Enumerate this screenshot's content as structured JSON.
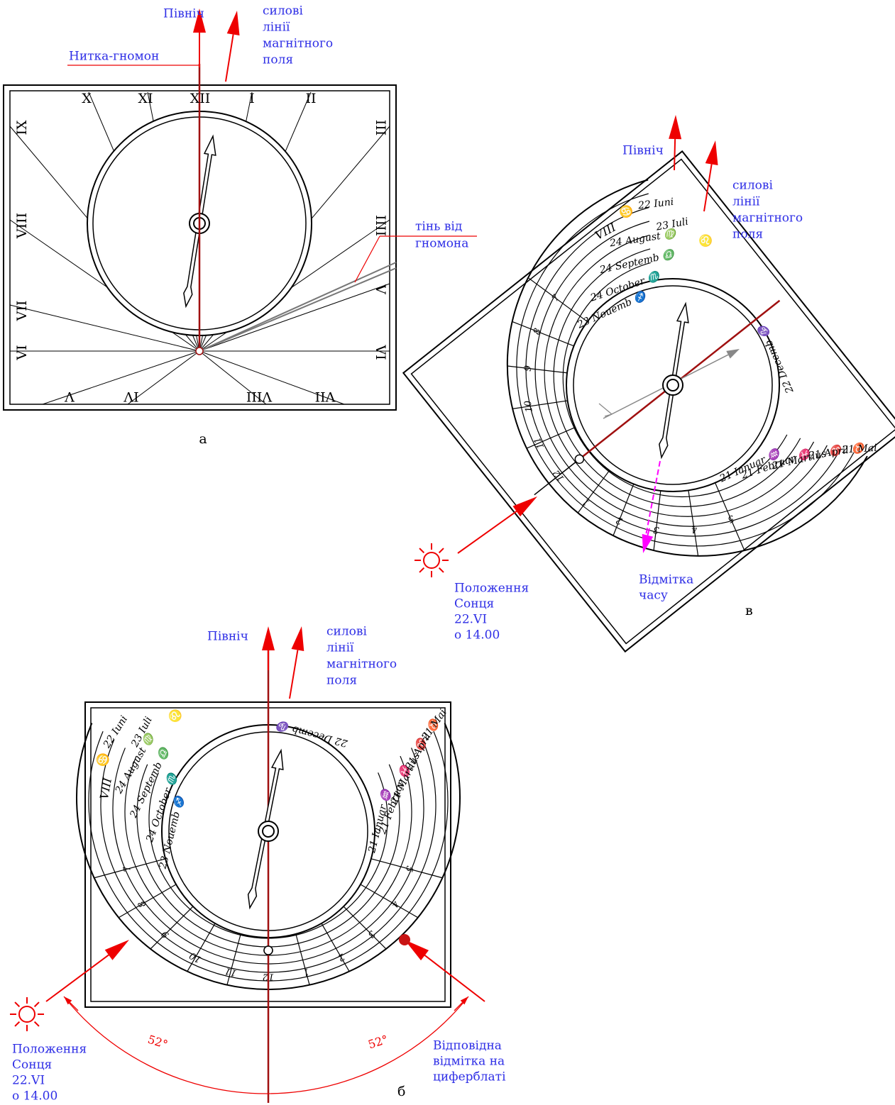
{
  "panel_a": {
    "north": "Північ",
    "field_lines": [
      "силові",
      "лінії",
      "магнітного",
      "поля"
    ],
    "gnomon_thread": "Нитка-гномон",
    "gnomon_shadow": [
      "тінь від",
      "гномона"
    ],
    "hours": [
      "X",
      "XI",
      "XII",
      "I",
      "II",
      "IX",
      "VIII",
      "VII",
      "VI",
      "III",
      "IIII",
      "V",
      "VI",
      "V",
      "IV",
      "VIII",
      "VII"
    ],
    "caption": "а"
  },
  "panel_v": {
    "north": "Північ",
    "field_lines": [
      "силові",
      "лінії",
      "магнітного",
      "поля"
    ],
    "dial": {
      "hours": [
        "7",
        "8",
        "9",
        "10",
        "11",
        "12",
        "1",
        "2",
        "3",
        "4",
        "5"
      ],
      "roman": "VIII",
      "months_left": [
        "22 Iuni",
        "23 Iuli",
        "24 August ♍",
        "24 Septemb ♎",
        "24 October ♏",
        "23 Nouemb ♐"
      ],
      "signs_left": [
        "♋",
        "♌"
      ],
      "months_right": [
        "22 Decemb ♑",
        "21 Ianuar ♒",
        "21 Februar ♓",
        "21 Martius ♈",
        "21 April ♉",
        "21 Mai"
      ]
    },
    "time_mark": [
      "Відмітка",
      "часу"
    ],
    "sun_position": [
      "Положення",
      "Сонця",
      "22.VI",
      "о 14.00"
    ],
    "caption": "в"
  },
  "panel_b": {
    "north": "Північ",
    "field_lines": [
      "силові",
      "лінії",
      "магнітного",
      "поля"
    ],
    "dial": {
      "hours": [
        "7",
        "8",
        "9",
        "10",
        "11",
        "12",
        "1",
        "2",
        "3",
        "4",
        "5"
      ],
      "roman": "VIII",
      "months_left": [
        "22 Iuni",
        "23 Iuli",
        "24 August ♍",
        "24 Septemb ♎",
        "24 October ♏",
        "23 Nouemb ♐"
      ],
      "signs_left": [
        "♋",
        "♌"
      ],
      "months_right": [
        "22 Decemb ♑",
        "21 Ianuar ♒",
        "21 Februar ♓",
        "21 Martius ♈",
        "21 April ♉",
        "21 Mai"
      ]
    },
    "sun_position": [
      "Положення",
      "Сонця",
      "22.VI",
      "о 14.00"
    ],
    "angle_left": "52°",
    "angle_right": "52°",
    "matching_mark": [
      "Відповідна",
      "відмітка на",
      "циферблаті"
    ],
    "caption": "б"
  }
}
